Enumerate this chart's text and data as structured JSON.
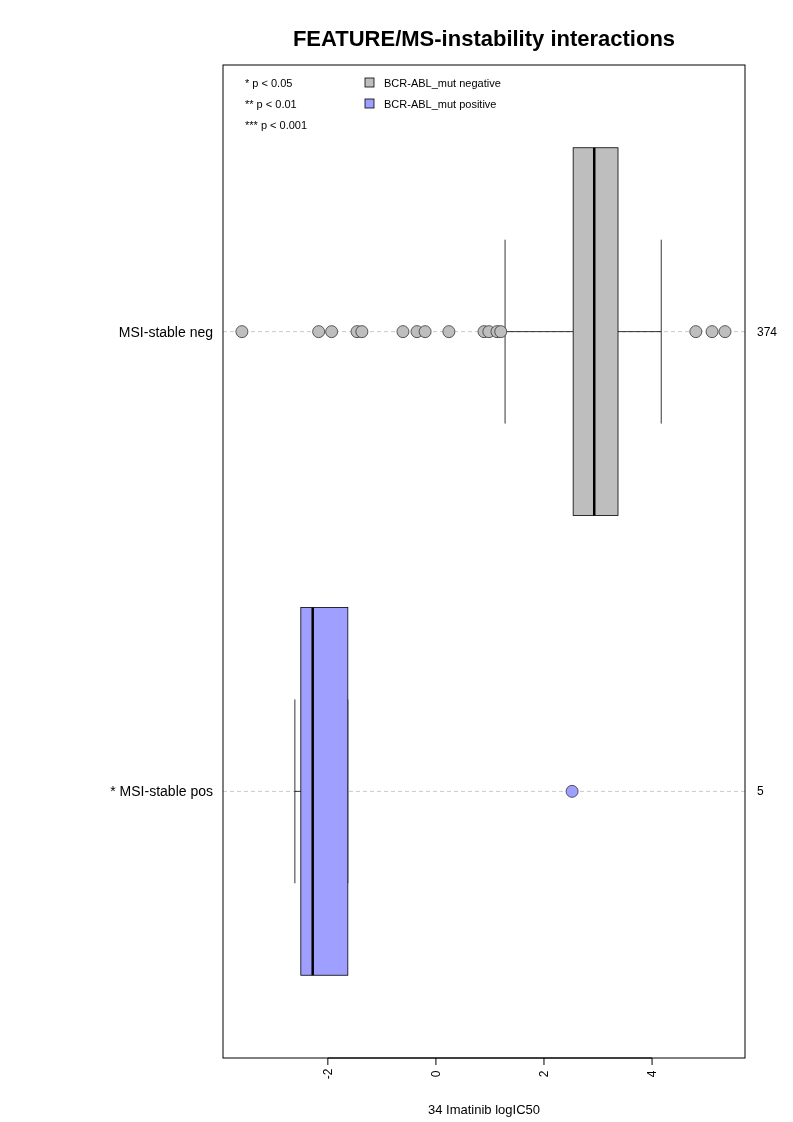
{
  "chart_data": {
    "type": "box",
    "orientation": "horizontal",
    "title": "FEATURE/MS-instability interactions",
    "xlabel": "34 Imatinib logIC50",
    "categories": [
      "MSI-stable neg",
      "* MSI-stable pos"
    ],
    "series": [
      {
        "name": "BCR-ABL_mut negative",
        "color": "#bebebe",
        "boxes": [
          {
            "low": 1.28,
            "q1": 2.54,
            "median": 2.93,
            "q3": 3.37,
            "high": 4.17,
            "outliers": [
              -3.59,
              -2.17,
              -1.93,
              -1.46,
              -1.37,
              -0.61,
              -0.35,
              -0.2,
              0.24,
              0.89,
              0.98,
              1.13,
              1.2,
              4.81,
              5.11,
              5.35
            ]
          },
          null
        ]
      },
      {
        "name": "BCR-ABL_mut positive",
        "color": "#9f9fff",
        "boxes": [
          null,
          {
            "low": -2.61,
            "q1": -2.5,
            "median": -2.28,
            "q3": -1.63,
            "high": -1.63,
            "outliers": [
              2.52
            ]
          }
        ]
      }
    ],
    "xlim": [
      -3.94,
      5.72
    ],
    "xticks": [
      -2,
      0,
      2,
      4
    ],
    "grid": "y",
    "legend": "top",
    "annotations": [
      "* p < 0.05",
      "** p < 0.01",
      "*** p < 0.001",
      "374",
      "5"
    ]
  }
}
